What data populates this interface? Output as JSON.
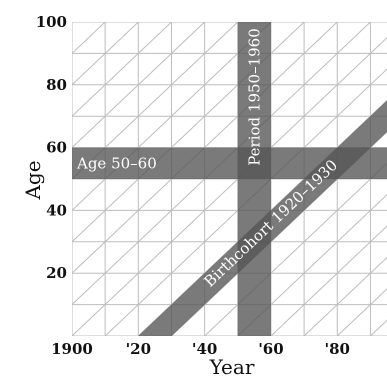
{
  "chart_data": {
    "type": "lexis",
    "xlabel": "Year",
    "ylabel": "Age",
    "xlim": [
      1900,
      1995
    ],
    "ylim": [
      0,
      100
    ],
    "x_ticks": [
      {
        "value": 1900,
        "label": "1900"
      },
      {
        "value": 1920,
        "label": "'20"
      },
      {
        "value": 1940,
        "label": "'40"
      },
      {
        "value": 1960,
        "label": "'60"
      },
      {
        "value": 1980,
        "label": "'80"
      }
    ],
    "y_ticks": [
      {
        "value": 20,
        "label": "20"
      },
      {
        "value": 40,
        "label": "40"
      },
      {
        "value": 60,
        "label": "60"
      },
      {
        "value": 80,
        "label": "80"
      },
      {
        "value": 100,
        "label": "100"
      }
    ],
    "grid": true,
    "bands": [
      {
        "kind": "age",
        "label": "Age 50–60",
        "from": 50,
        "to": 60
      },
      {
        "kind": "period",
        "label": "Period 1950–1960",
        "from": 1950,
        "to": 1960
      },
      {
        "kind": "cohort",
        "label": "Birthcohort 1920–1930",
        "from": 1920,
        "to": 1930
      }
    ],
    "colors": {
      "band": "#555555",
      "grid": "#bdbdbd",
      "text": "#111111"
    }
  }
}
